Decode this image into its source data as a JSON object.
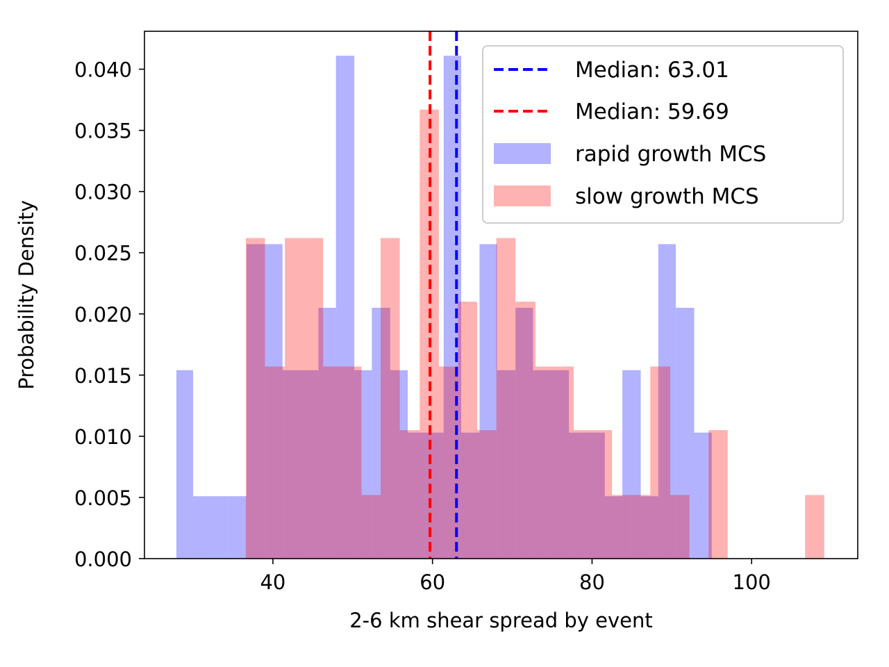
{
  "chart_data": {
    "type": "histogram",
    "title": "",
    "xlabel": "2-6 km shear spread by event",
    "ylabel": "Probability Density",
    "xlim": [
      23.9,
      113.3
    ],
    "ylim": [
      0,
      0.0431
    ],
    "x_ticks": [
      40,
      60,
      80,
      100
    ],
    "y_ticks": [
      0.0,
      0.005,
      0.01,
      0.015,
      0.02,
      0.025,
      0.03,
      0.035,
      0.04
    ],
    "y_tick_labels": [
      "0.000",
      "0.005",
      "0.010",
      "0.015",
      "0.020",
      "0.025",
      "0.030",
      "0.035",
      "0.040"
    ],
    "grid": false,
    "legend_position": "top-right",
    "series": [
      {
        "name": "rapid growth MCS",
        "color": "#0000ff",
        "alpha": 0.3,
        "bins": [
          [
            27.9,
            30.0,
            0.0154
          ],
          [
            30.0,
            32.2,
            0.0051
          ],
          [
            32.2,
            34.5,
            0.0051
          ],
          [
            34.5,
            36.7,
            0.0051
          ],
          [
            36.7,
            39.0,
            0.0257
          ],
          [
            39.0,
            41.2,
            0.0257
          ],
          [
            41.2,
            43.4,
            0.0154
          ],
          [
            43.4,
            45.7,
            0.0154
          ],
          [
            45.7,
            47.9,
            0.0205
          ],
          [
            47.9,
            50.2,
            0.0411
          ],
          [
            50.2,
            52.4,
            0.0154
          ],
          [
            52.4,
            54.7,
            0.0205
          ],
          [
            54.7,
            56.9,
            0.0154
          ],
          [
            56.9,
            59.1,
            0.0103
          ],
          [
            59.1,
            61.4,
            0.0103
          ],
          [
            61.4,
            63.6,
            0.0411
          ],
          [
            63.6,
            65.9,
            0.0103
          ],
          [
            65.9,
            68.1,
            0.0257
          ],
          [
            68.1,
            70.4,
            0.0154
          ],
          [
            70.4,
            72.6,
            0.0205
          ],
          [
            72.6,
            74.8,
            0.0154
          ],
          [
            74.8,
            77.1,
            0.0154
          ],
          [
            77.1,
            79.3,
            0.0103
          ],
          [
            79.3,
            81.6,
            0.0103
          ],
          [
            81.6,
            83.8,
            0.0051
          ],
          [
            83.8,
            86.1,
            0.0154
          ],
          [
            86.1,
            88.3,
            0.0051
          ],
          [
            88.3,
            90.5,
            0.0257
          ],
          [
            90.5,
            92.8,
            0.0205
          ],
          [
            92.8,
            95.0,
            0.0103
          ]
        ]
      },
      {
        "name": "slow growth MCS",
        "color": "#ff0000",
        "alpha": 0.3,
        "bins": [
          [
            36.6,
            39.0,
            0.0262
          ],
          [
            39.0,
            41.5,
            0.0157
          ],
          [
            41.5,
            43.9,
            0.0262
          ],
          [
            43.9,
            46.3,
            0.0262
          ],
          [
            46.3,
            48.7,
            0.0157
          ],
          [
            48.7,
            51.1,
            0.0157
          ],
          [
            51.1,
            53.5,
            0.0052
          ],
          [
            53.5,
            55.9,
            0.0262
          ],
          [
            55.9,
            58.4,
            0.0105
          ],
          [
            58.4,
            60.8,
            0.0367
          ],
          [
            60.8,
            63.2,
            0.0157
          ],
          [
            63.2,
            65.6,
            0.021
          ],
          [
            65.6,
            68.0,
            0.0105
          ],
          [
            68.0,
            70.4,
            0.0262
          ],
          [
            70.4,
            72.9,
            0.021
          ],
          [
            72.9,
            75.3,
            0.0157
          ],
          [
            75.3,
            77.7,
            0.0157
          ],
          [
            77.7,
            80.1,
            0.0105
          ],
          [
            80.1,
            82.5,
            0.0105
          ],
          [
            82.5,
            84.9,
            0.0052
          ],
          [
            84.9,
            87.3,
            0.0052
          ],
          [
            87.3,
            89.8,
            0.0157
          ],
          [
            89.8,
            92.2,
            0.0052
          ],
          [
            92.2,
            94.6,
            0.0
          ],
          [
            94.6,
            97.0,
            0.0105
          ],
          [
            97.0,
            99.4,
            0.0
          ],
          [
            99.4,
            101.8,
            0.0
          ],
          [
            101.8,
            104.2,
            0.0
          ],
          [
            104.2,
            106.7,
            0.0
          ],
          [
            106.7,
            109.1,
            0.0052
          ]
        ]
      }
    ],
    "median_lines": [
      {
        "label": "Median: 63.01",
        "value": 63.01,
        "color": "#0000ff",
        "style": "dashed"
      },
      {
        "label": "Median: 59.69",
        "value": 59.69,
        "color": "#ff0000",
        "style": "dashed"
      }
    ],
    "legend": [
      {
        "kind": "line",
        "label": "Median: 63.01",
        "color": "#0000ff"
      },
      {
        "kind": "line",
        "label": "Median: 59.69",
        "color": "#ff0000"
      },
      {
        "kind": "patch",
        "label": "rapid growth MCS",
        "color": "#0000ff"
      },
      {
        "kind": "patch",
        "label": "slow growth MCS",
        "color": "#ff0000"
      }
    ]
  }
}
